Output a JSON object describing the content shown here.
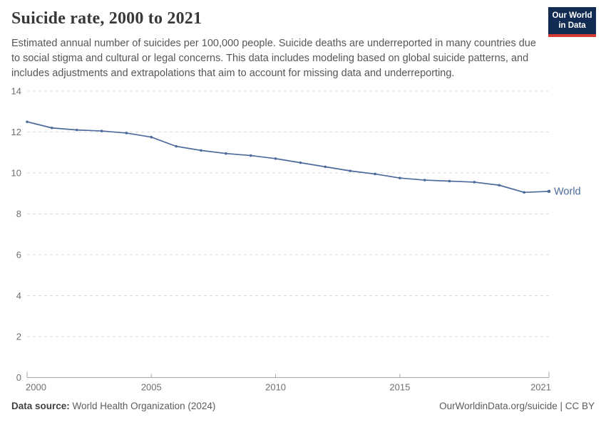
{
  "header": {
    "title": "Suicide rate, 2000 to 2021",
    "subtitle": "Estimated annual number of suicides per 100,000 people. Suicide deaths are underreported in many countries due to social stigma and cultural or legal concerns. This data includes modeling based on global suicide patterns, and includes adjustments and extrapolations that aim to account for missing data and underreporting.",
    "logo": {
      "line1": "Our World",
      "line2": "in Data",
      "bg_color": "#122b52",
      "accent_color": "#d23a32"
    }
  },
  "chart_data": {
    "type": "line",
    "title": "Suicide rate, 2000 to 2021",
    "xlabel": "",
    "ylabel": "",
    "xlim": [
      2000,
      2021
    ],
    "ylim": [
      0,
      14
    ],
    "x_ticks": [
      2000,
      2005,
      2010,
      2015,
      2021
    ],
    "y_ticks": [
      0,
      2,
      4,
      6,
      8,
      10,
      12,
      14
    ],
    "grid": "horizontal-dashed",
    "legend_position": "end-of-line",
    "x": [
      2000,
      2001,
      2002,
      2003,
      2004,
      2005,
      2006,
      2007,
      2008,
      2009,
      2010,
      2011,
      2012,
      2013,
      2014,
      2015,
      2016,
      2017,
      2018,
      2019,
      2020,
      2021
    ],
    "series": [
      {
        "name": "World",
        "color": "#4c6a9c",
        "values": [
          12.5,
          12.2,
          12.1,
          12.05,
          11.95,
          11.75,
          11.3,
          11.1,
          10.95,
          10.85,
          10.7,
          10.5,
          10.3,
          10.1,
          9.95,
          9.75,
          9.65,
          9.6,
          9.55,
          9.4,
          9.05,
          9.1
        ]
      }
    ]
  },
  "footer": {
    "source_label": "Data source:",
    "source_value": "World Health Organization (2024)",
    "attribution": "OurWorldinData.org/suicide | CC BY"
  },
  "colors": {
    "grid": "#dcdcdc",
    "axis": "#a3a3a3",
    "tick_label": "#6e6e6e",
    "line": "#4c6a9c"
  }
}
